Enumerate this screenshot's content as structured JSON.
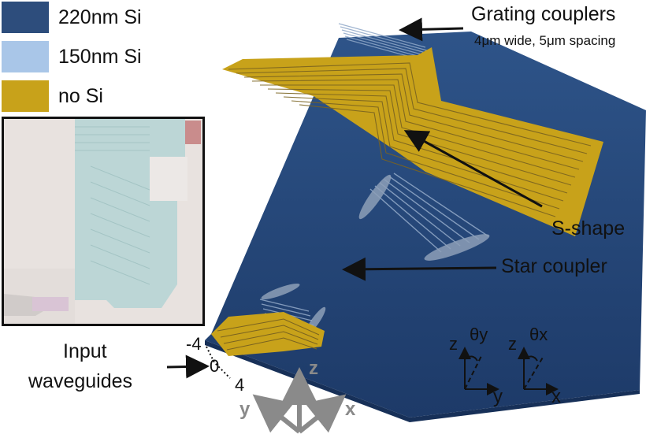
{
  "legend": [
    {
      "label": "220nm Si",
      "color": "#2d4d7c"
    },
    {
      "label": "150nm Si",
      "color": "#a9c6e8"
    },
    {
      "label": "no Si",
      "color": "#c8a21a"
    }
  ],
  "annotations": {
    "grating_couplers": "Grating couplers",
    "grating_detail": "4μm wide, 5μm spacing",
    "s_shape": "S-shape",
    "star_coupler": "Star coupler",
    "input_line1": "Input",
    "input_line2": "waveguides"
  },
  "input_ticks": [
    "-4",
    "0",
    "4"
  ],
  "axes_3d": {
    "z": "z",
    "y": "y",
    "x": "x"
  },
  "angle_diagrams": [
    {
      "vertical": "z",
      "horizontal": "y",
      "angle": "θy"
    },
    {
      "vertical": "z",
      "horizontal": "x",
      "angle": "θx"
    }
  ],
  "colors": {
    "chip_top": "#2b4f86",
    "chip_bottom": "#1f3966",
    "trench": "#c8a21a",
    "shallow": "#8da5c4",
    "axis_gray": "#8a8a8a"
  }
}
